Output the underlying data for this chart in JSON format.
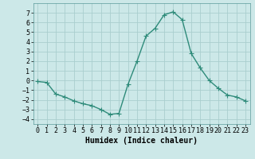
{
  "x": [
    0,
    1,
    2,
    3,
    4,
    5,
    6,
    7,
    8,
    9,
    10,
    11,
    12,
    13,
    14,
    15,
    16,
    17,
    18,
    19,
    20,
    21,
    22,
    23
  ],
  "y": [
    -0.1,
    -0.2,
    -1.4,
    -1.7,
    -2.1,
    -2.4,
    -2.6,
    -3.0,
    -3.5,
    -3.4,
    -0.4,
    2.0,
    4.6,
    5.4,
    6.8,
    7.1,
    6.3,
    2.8,
    1.3,
    0.0,
    -0.8,
    -1.5,
    -1.7,
    -2.1
  ],
  "line_color": "#2e8b7a",
  "marker": "+",
  "marker_size": 4,
  "line_width": 1.0,
  "bg_color": "#cce8e8",
  "grid_color": "#aacece",
  "xlabel": "Humidex (Indice chaleur)",
  "xlabel_fontsize": 7,
  "tick_fontsize": 6,
  "ylim": [
    -4.5,
    8.0
  ],
  "xlim": [
    -0.5,
    23.5
  ],
  "yticks": [
    -4,
    -3,
    -2,
    -1,
    0,
    1,
    2,
    3,
    4,
    5,
    6,
    7
  ],
  "xticks": [
    0,
    1,
    2,
    3,
    4,
    5,
    6,
    7,
    8,
    9,
    10,
    11,
    12,
    13,
    14,
    15,
    16,
    17,
    18,
    19,
    20,
    21,
    22,
    23
  ]
}
